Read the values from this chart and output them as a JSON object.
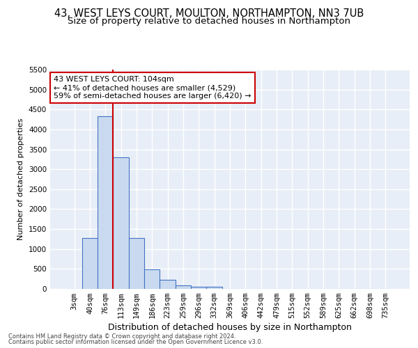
{
  "title1": "43, WEST LEYS COURT, MOULTON, NORTHAMPTON, NN3 7UB",
  "title2": "Size of property relative to detached houses in Northampton",
  "xlabel": "Distribution of detached houses by size in Northampton",
  "ylabel": "Number of detached properties",
  "bar_labels": [
    "3sqm",
    "40sqm",
    "76sqm",
    "113sqm",
    "149sqm",
    "186sqm",
    "223sqm",
    "259sqm",
    "296sqm",
    "332sqm",
    "369sqm",
    "406sqm",
    "442sqm",
    "479sqm",
    "515sqm",
    "552sqm",
    "589sqm",
    "625sqm",
    "662sqm",
    "698sqm",
    "735sqm"
  ],
  "bar_values": [
    0,
    1270,
    4330,
    3300,
    1280,
    490,
    220,
    90,
    60,
    60,
    0,
    0,
    0,
    0,
    0,
    0,
    0,
    0,
    0,
    0,
    0
  ],
  "bar_color": "#c9daf0",
  "bar_edge_color": "#4472c4",
  "vline_color": "#cc0000",
  "vline_x": 2.5,
  "annotation_line1": "43 WEST LEYS COURT: 104sqm",
  "annotation_line2": "← 41% of detached houses are smaller (4,529)",
  "annotation_line3": "59% of semi-detached houses are larger (6,420) →",
  "annotation_box_color": "#cc0000",
  "ylim_max": 5500,
  "yticks": [
    0,
    500,
    1000,
    1500,
    2000,
    2500,
    3000,
    3500,
    4000,
    4500,
    5000,
    5500
  ],
  "background_color": "#e8eef7",
  "grid_color": "#ffffff",
  "footer1": "Contains HM Land Registry data © Crown copyright and database right 2024.",
  "footer2": "Contains public sector information licensed under the Open Government Licence v3.0.",
  "title1_fontsize": 10.5,
  "title2_fontsize": 9.5,
  "ylabel_fontsize": 8,
  "xlabel_fontsize": 9,
  "tick_fontsize": 7.5,
  "annotation_fontsize": 8,
  "footer_fontsize": 6
}
